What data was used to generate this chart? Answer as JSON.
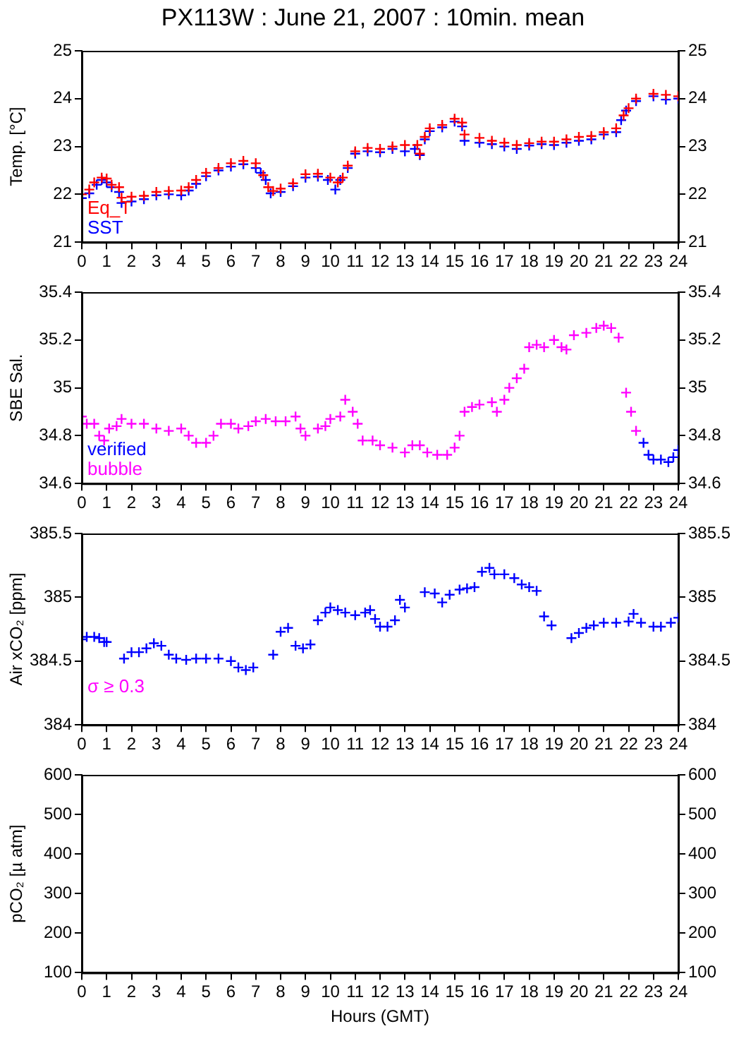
{
  "chart_data": [
    {
      "type": "scatter",
      "title": "PX113W : June 21, 2007 : 10min. mean",
      "ylabel": "Temp. [°C]",
      "xlim": [
        0,
        24
      ],
      "xticks": [
        0,
        1,
        2,
        3,
        4,
        5,
        6,
        7,
        8,
        9,
        10,
        11,
        12,
        13,
        14,
        15,
        16,
        17,
        18,
        19,
        20,
        21,
        22,
        23,
        24
      ],
      "ylim": [
        21,
        25
      ],
      "yticks": [
        21,
        22,
        23,
        24,
        25
      ],
      "y2lim": [
        21,
        25
      ],
      "y2ticks": [
        21,
        22,
        23,
        24,
        25
      ],
      "grid": false,
      "legend": "bottom left",
      "marker": "cross",
      "series": [
        {
          "name": "Eq_T",
          "color": "#ff0000",
          "x": [
            0,
            0.3,
            0.5,
            0.8,
            1.0,
            1.2,
            1.5,
            1.6,
            2.0,
            2.5,
            3.0,
            3.5,
            4.0,
            4.3,
            4.6,
            5.0,
            5.5,
            6.0,
            6.5,
            7.0,
            7.3,
            7.5,
            7.7,
            8.0,
            8.5,
            9.0,
            9.5,
            10.0,
            10.3,
            10.5,
            10.7,
            11.0,
            11.5,
            12.0,
            12.5,
            13.0,
            13.5,
            13.6,
            13.8,
            14.0,
            14.5,
            15.0,
            15.3,
            15.4,
            16.0,
            16.5,
            17.0,
            17.5,
            18.0,
            18.5,
            19.0,
            19.5,
            20.0,
            20.5,
            21.0,
            21.5,
            21.8,
            22.0,
            22.3,
            23.0,
            23.5,
            24.0
          ],
          "values": [
            22.0,
            22.1,
            22.25,
            22.35,
            22.33,
            22.2,
            22.15,
            21.93,
            21.95,
            21.97,
            22.05,
            22.07,
            22.08,
            22.15,
            22.3,
            22.45,
            22.55,
            22.65,
            22.7,
            22.65,
            22.4,
            22.15,
            22.07,
            22.12,
            22.23,
            22.42,
            22.43,
            22.35,
            22.25,
            22.35,
            22.6,
            22.9,
            22.97,
            22.95,
            23.0,
            23.03,
            23.03,
            22.85,
            23.2,
            23.38,
            23.45,
            23.58,
            23.5,
            23.25,
            23.18,
            23.12,
            23.08,
            23.03,
            23.07,
            23.1,
            23.1,
            23.15,
            23.2,
            23.22,
            23.3,
            23.38,
            23.65,
            23.8,
            24.0,
            24.1,
            24.08,
            24.05
          ]
        },
        {
          "name": "SST",
          "color": "#0000ff",
          "x": [
            0,
            0.3,
            0.6,
            0.8,
            1.0,
            1.2,
            1.5,
            1.6,
            2.0,
            2.5,
            3.0,
            3.5,
            4.0,
            4.3,
            4.6,
            5.0,
            5.5,
            6.0,
            6.5,
            7.0,
            7.2,
            7.4,
            7.6,
            8.0,
            8.5,
            9.0,
            9.5,
            9.9,
            10.2,
            10.4,
            10.7,
            11.0,
            11.5,
            12.0,
            12.5,
            13.0,
            13.4,
            13.6,
            13.8,
            14.0,
            14.5,
            15.0,
            15.3,
            15.4,
            16.0,
            16.5,
            17.0,
            17.5,
            18.0,
            18.5,
            19.0,
            19.5,
            20.0,
            20.5,
            21.0,
            21.5,
            21.7,
            21.9,
            22.3,
            23.0,
            23.5,
            24.0
          ],
          "values": [
            21.92,
            22.02,
            22.2,
            22.3,
            22.25,
            22.15,
            22.05,
            21.82,
            21.85,
            21.9,
            21.98,
            22.0,
            21.98,
            22.08,
            22.22,
            22.38,
            22.5,
            22.58,
            22.63,
            22.55,
            22.45,
            22.3,
            22.02,
            22.05,
            22.17,
            22.35,
            22.37,
            22.3,
            22.1,
            22.3,
            22.55,
            22.85,
            22.9,
            22.88,
            22.95,
            22.9,
            22.95,
            22.82,
            23.15,
            23.32,
            23.4,
            23.52,
            23.42,
            23.12,
            23.08,
            23.05,
            23.0,
            22.95,
            23.02,
            23.05,
            23.03,
            23.08,
            23.12,
            23.15,
            23.25,
            23.3,
            23.55,
            23.75,
            23.95,
            24.05,
            23.98,
            24.0
          ]
        }
      ]
    },
    {
      "type": "scatter",
      "ylabel": "SBE Sal.",
      "xlim": [
        0,
        24
      ],
      "xticks": [
        0,
        1,
        2,
        3,
        4,
        5,
        6,
        7,
        8,
        9,
        10,
        11,
        12,
        13,
        14,
        15,
        16,
        17,
        18,
        19,
        20,
        21,
        22,
        23,
        24
      ],
      "ylim": [
        34.6,
        35.4
      ],
      "yticks": [
        34.6,
        34.8,
        35,
        35.2,
        35.4
      ],
      "y2lim": [
        34.6,
        35.4
      ],
      "y2ticks": [
        34.6,
        34.8,
        35,
        35.2,
        35.4
      ],
      "grid": false,
      "legend": "bottom left",
      "marker": "cross",
      "series": [
        {
          "name": "verified",
          "color": "#0000ff",
          "x": [
            22.6,
            22.8,
            23.0,
            23.3,
            23.6,
            23.8,
            24.0
          ],
          "values": [
            34.77,
            34.72,
            34.7,
            34.7,
            34.69,
            34.71,
            34.74
          ]
        },
        {
          "name": "bubble",
          "color": "#ff00ff",
          "x": [
            0,
            0.2,
            0.5,
            0.7,
            0.9,
            1.1,
            1.4,
            1.6,
            2.0,
            2.5,
            3.0,
            3.5,
            4.0,
            4.3,
            4.6,
            5.0,
            5.3,
            5.6,
            6.0,
            6.3,
            6.7,
            7.0,
            7.4,
            7.8,
            8.2,
            8.6,
            8.8,
            9.0,
            9.5,
            9.8,
            10.0,
            10.4,
            10.6,
            10.9,
            11.1,
            11.3,
            11.7,
            12.0,
            12.5,
            13.0,
            13.3,
            13.6,
            13.9,
            14.3,
            14.7,
            15.0,
            15.2,
            15.4,
            15.7,
            16.0,
            16.5,
            16.7,
            17.0,
            17.2,
            17.5,
            17.8,
            18.0,
            18.3,
            18.6,
            19.0,
            19.3,
            19.5,
            19.8,
            20.3,
            20.7,
            21.0,
            21.3,
            21.6,
            21.9,
            22.1,
            22.3
          ],
          "values": [
            34.88,
            34.85,
            34.85,
            34.8,
            34.78,
            34.83,
            34.84,
            34.87,
            34.85,
            34.85,
            34.83,
            34.82,
            34.83,
            34.8,
            34.77,
            34.77,
            34.8,
            34.85,
            34.85,
            34.83,
            34.84,
            34.86,
            34.87,
            34.86,
            34.86,
            34.88,
            34.83,
            34.8,
            34.83,
            34.84,
            34.87,
            34.88,
            34.95,
            34.9,
            34.85,
            34.78,
            34.78,
            34.76,
            34.75,
            34.73,
            34.76,
            34.76,
            34.73,
            34.72,
            34.72,
            34.75,
            34.8,
            34.9,
            34.92,
            34.93,
            34.94,
            34.9,
            34.95,
            35.0,
            35.04,
            35.08,
            35.17,
            35.18,
            35.17,
            35.2,
            35.17,
            35.16,
            35.22,
            35.23,
            35.25,
            35.26,
            35.25,
            35.21,
            34.98,
            34.9,
            34.82
          ]
        }
      ]
    },
    {
      "type": "scatter",
      "ylabel": "Air xCO₂ [ppm]",
      "annotations": [
        "σ ≥ 0.3"
      ],
      "xlim": [
        0,
        24
      ],
      "xticks": [
        0,
        1,
        2,
        3,
        4,
        5,
        6,
        7,
        8,
        9,
        10,
        11,
        12,
        13,
        14,
        15,
        16,
        17,
        18,
        19,
        20,
        21,
        22,
        23,
        24
      ],
      "ylim": [
        384,
        385.5
      ],
      "yticks": [
        384,
        384.5,
        385,
        385.5
      ],
      "y2lim": [
        384,
        385.5
      ],
      "y2ticks": [
        384,
        384.5,
        385,
        385.5
      ],
      "grid": false,
      "marker": "cross",
      "series": [
        {
          "color": "#0000ff",
          "x": [
            0,
            0.2,
            0.5,
            0.7,
            0.9,
            1.0,
            1.7,
            2.0,
            2.3,
            2.6,
            2.9,
            3.2,
            3.5,
            3.8,
            4.2,
            4.6,
            5.0,
            5.5,
            6.0,
            6.3,
            6.6,
            6.9,
            7.7,
            8.0,
            8.3,
            8.6,
            8.9,
            9.2,
            9.5,
            9.8,
            10.0,
            10.3,
            10.6,
            11.0,
            11.4,
            11.6,
            11.8,
            12.0,
            12.3,
            12.6,
            12.8,
            13.0,
            13.8,
            14.2,
            14.5,
            14.8,
            15.2,
            15.5,
            15.8,
            16.1,
            16.4,
            16.6,
            17.0,
            17.4,
            17.7,
            18.0,
            18.3,
            18.6,
            18.9,
            19.7,
            20.0,
            20.3,
            20.6,
            21.0,
            21.5,
            22.0,
            22.2,
            22.5,
            23.0,
            23.3,
            23.7,
            24.0
          ],
          "values": [
            384.67,
            384.69,
            384.69,
            384.68,
            384.65,
            384.65,
            384.52,
            384.57,
            384.57,
            384.6,
            384.64,
            384.62,
            384.55,
            384.52,
            384.51,
            384.52,
            384.52,
            384.52,
            384.5,
            384.45,
            384.43,
            384.45,
            384.55,
            384.73,
            384.76,
            384.62,
            384.6,
            384.63,
            384.82,
            384.88,
            384.92,
            384.9,
            384.88,
            384.86,
            384.88,
            384.9,
            384.83,
            384.77,
            384.77,
            384.82,
            384.98,
            384.92,
            385.04,
            385.03,
            384.96,
            385.02,
            385.06,
            385.07,
            385.08,
            385.2,
            385.23,
            385.18,
            385.18,
            385.15,
            385.1,
            385.08,
            385.05,
            384.85,
            384.78,
            384.68,
            384.72,
            384.76,
            384.78,
            384.8,
            384.8,
            384.81,
            384.87,
            384.8,
            384.77,
            384.77,
            384.8,
            384.84
          ]
        }
      ]
    },
    {
      "type": "scatter",
      "ylabel": "pCO₂ [µ atm]",
      "xlabel": "Hours (GMT)",
      "xlim": [
        0,
        24
      ],
      "xticks": [
        0,
        1,
        2,
        3,
        4,
        5,
        6,
        7,
        8,
        9,
        10,
        11,
        12,
        13,
        14,
        15,
        16,
        17,
        18,
        19,
        20,
        21,
        22,
        23,
        24
      ],
      "ylim": [
        100,
        600
      ],
      "yticks": [
        100,
        200,
        300,
        400,
        500,
        600
      ],
      "y2lim": [
        100,
        600
      ],
      "y2ticks": [
        100,
        200,
        300,
        400,
        500,
        600
      ],
      "grid": false,
      "marker": "cross"
    }
  ]
}
